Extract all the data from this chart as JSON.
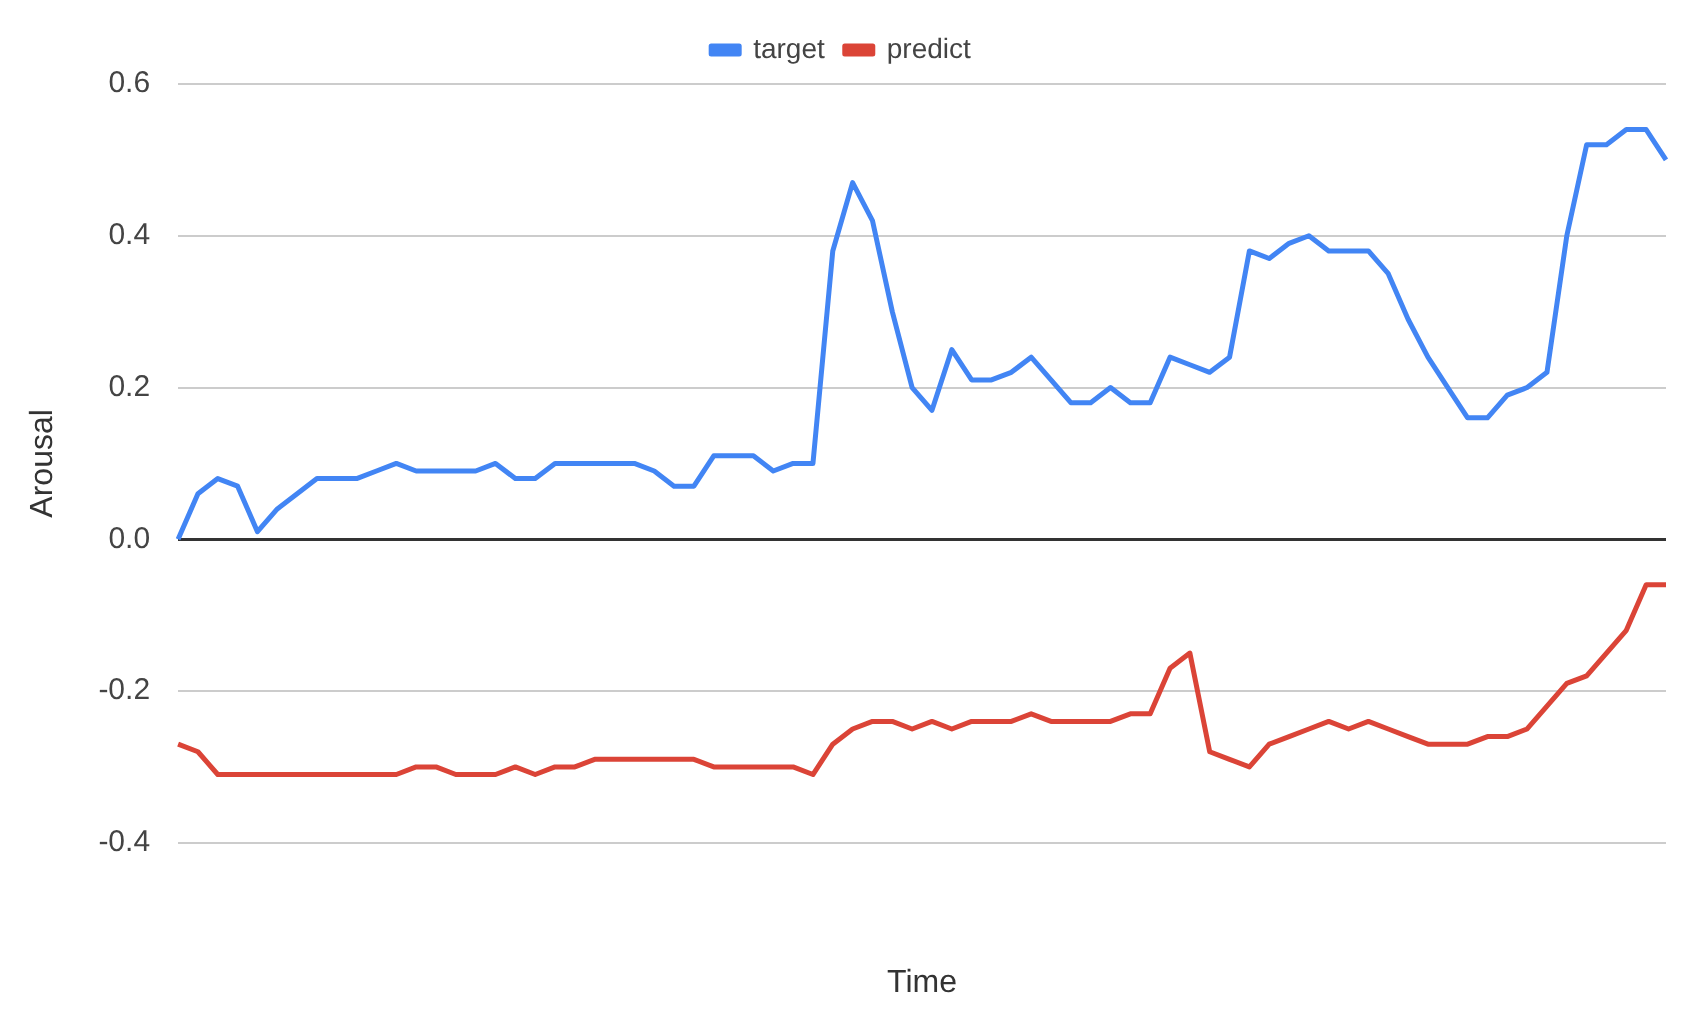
{
  "chart_data": {
    "type": "line",
    "xlabel": "Time",
    "ylabel": "Arousal",
    "categories": [
      null,
      null,
      null,
      null,
      null,
      null,
      null,
      null,
      null,
      null,
      null,
      null,
      null,
      null,
      null,
      null,
      null,
      null,
      null,
      null,
      null,
      null,
      null,
      null,
      null,
      null,
      null,
      null,
      null,
      null,
      null,
      null,
      null,
      null,
      null,
      null,
      null,
      null,
      null,
      null,
      null,
      null,
      null,
      null,
      null,
      null,
      null,
      null,
      null,
      null,
      null,
      null,
      null,
      null,
      null,
      null,
      null,
      null,
      null,
      null,
      null,
      null,
      null,
      null,
      null,
      null,
      null,
      null,
      null,
      null,
      null,
      null,
      null,
      null,
      null,
      null
    ],
    "series": [
      {
        "name": "target",
        "color": "#4285f4",
        "values": [
          0,
          0.06,
          0.08,
          0.07,
          0.01,
          0.04,
          0.06,
          0.08,
          0.08,
          0.08,
          0.09,
          0.1,
          0.09,
          0.09,
          0.09,
          0.09,
          0.1,
          0.08,
          0.08,
          0.1,
          0.1,
          0.1,
          0.1,
          0.1,
          0.09,
          0.07,
          0.07,
          0.11,
          0.11,
          0.11,
          0.09,
          0.1,
          0.1,
          0.38,
          0.47,
          0.42,
          0.3,
          0.2,
          0.17,
          0.25,
          0.21,
          0.21,
          0.22,
          0.24,
          0.21,
          0.18,
          0.18,
          0.2,
          0.18,
          0.18,
          0.24,
          0.23,
          0.22,
          0.24,
          0.38,
          0.37,
          0.39,
          0.4,
          0.38,
          0.38,
          0.38,
          0.35,
          0.29,
          0.24,
          0.2,
          0.16,
          0.16,
          0.19,
          0.2,
          0.22,
          0.4,
          0.52,
          0.52,
          0.54,
          0.54,
          0.5
        ]
      },
      {
        "name": "predict",
        "color": "#db4437",
        "values": [
          -0.27,
          -0.28,
          -0.31,
          -0.31,
          -0.31,
          -0.31,
          -0.31,
          -0.31,
          -0.31,
          -0.31,
          -0.31,
          -0.31,
          -0.3,
          -0.3,
          -0.31,
          -0.31,
          -0.31,
          -0.3,
          -0.31,
          -0.3,
          -0.3,
          -0.29,
          -0.29,
          -0.29,
          -0.29,
          -0.29,
          -0.29,
          -0.3,
          -0.3,
          -0.3,
          -0.3,
          -0.3,
          -0.31,
          -0.27,
          -0.25,
          -0.24,
          -0.24,
          -0.25,
          -0.24,
          -0.25,
          -0.24,
          -0.24,
          -0.24,
          -0.23,
          -0.24,
          -0.24,
          -0.24,
          -0.24,
          -0.23,
          -0.23,
          -0.17,
          -0.15,
          -0.28,
          -0.29,
          -0.3,
          -0.27,
          -0.26,
          -0.25,
          -0.24,
          -0.25,
          -0.24,
          -0.25,
          -0.26,
          -0.27,
          -0.27,
          -0.27,
          -0.26,
          -0.26,
          -0.25,
          -0.22,
          -0.19,
          -0.18,
          -0.15,
          -0.12,
          -0.06,
          -0.06
        ]
      }
    ],
    "ylim": [
      -0.4,
      0.6
    ],
    "yticks": [
      -0.4,
      -0.2,
      {
        "value": 0,
        "label": "0.0"
      },
      0.2,
      0.4,
      0.6
    ],
    "grid": "y",
    "legend": "top",
    "marker": "none",
    "line_style": "solid"
  }
}
